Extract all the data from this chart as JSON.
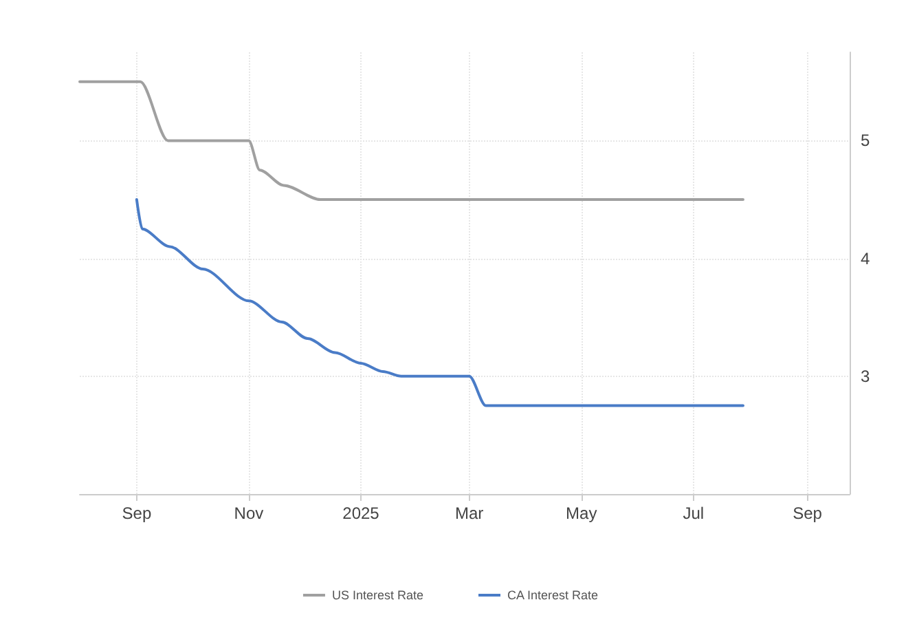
{
  "chart_data": {
    "type": "line",
    "xlim": [
      "2024-08-01",
      "2025-09-24"
    ],
    "ylim": [
      2,
      5.75
    ],
    "xticks": [
      {
        "value": "2024-09-01",
        "label": "Sep"
      },
      {
        "value": "2024-11-01",
        "label": "Nov"
      },
      {
        "value": "2025-01-01",
        "label": "2025"
      },
      {
        "value": "2025-03-01",
        "label": "Mar"
      },
      {
        "value": "2025-05-01",
        "label": "May"
      },
      {
        "value": "2025-07-01",
        "label": "Jul"
      },
      {
        "value": "2025-09-01",
        "label": "Sep"
      }
    ],
    "yticks": [
      3,
      4,
      5
    ],
    "grid": true,
    "legend": "bottom",
    "marker": "none",
    "line_style": "solid",
    "series": [
      {
        "name": "US Interest Rate",
        "color": "#a0a0a0",
        "x": [
          "2024-08-01",
          "2024-09-03",
          "2024-09-18",
          "2024-11-01",
          "2024-11-07",
          "2024-11-20",
          "2024-12-10",
          "2025-07-28"
        ],
        "values": [
          5.5,
          5.5,
          5.0,
          5.0,
          4.75,
          4.62,
          4.5,
          4.5
        ]
      },
      {
        "name": "CA Interest Rate",
        "color": "#4a7cc7",
        "x": [
          "2024-09-01",
          "2024-09-04",
          "2024-09-19",
          "2024-10-07",
          "2024-11-01",
          "2024-11-19",
          "2024-12-03",
          "2024-12-18",
          "2025-01-01",
          "2025-01-13",
          "2025-01-23",
          "2025-03-01",
          "2025-03-10",
          "2025-07-28"
        ],
        "values": [
          4.5,
          4.25,
          4.1,
          3.91,
          3.64,
          3.46,
          3.32,
          3.2,
          3.11,
          3.04,
          3.0,
          3.0,
          2.75,
          2.75
        ]
      }
    ]
  }
}
